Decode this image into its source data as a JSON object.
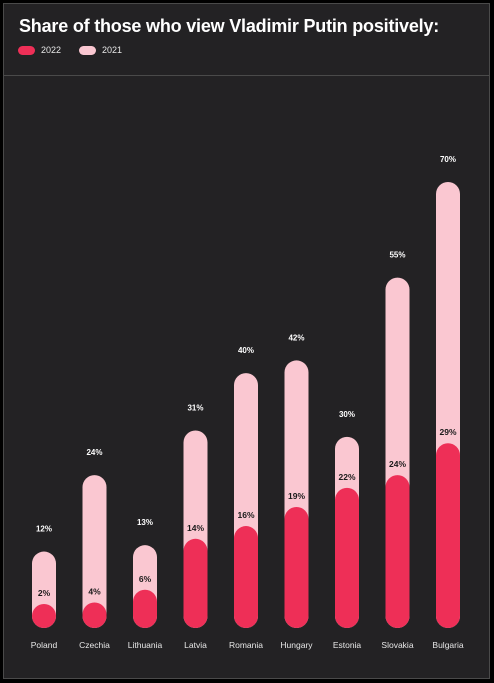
{
  "chart_data": {
    "type": "bar",
    "title": "Share of those who view Vladimir Putin positively:",
    "categories": [
      "Poland",
      "Czechia",
      "Lithuania",
      "Latvia",
      "Romania",
      "Hungary",
      "Estonia",
      "Slovakia",
      "Bulgaria"
    ],
    "series": [
      {
        "name": "2022",
        "color": "#ee2f57",
        "values": [
          2,
          4,
          6,
          14,
          16,
          19,
          22,
          24,
          29
        ],
        "labels": [
          "2%",
          "4%",
          "6%",
          "14%",
          "16%",
          "19%",
          "22%",
          "24%",
          "29%"
        ]
      },
      {
        "name": "2021",
        "color": "#fac7d1",
        "values": [
          12,
          24,
          13,
          31,
          40,
          42,
          30,
          55,
          70
        ],
        "labels": [
          "12%",
          "24%",
          "13%",
          "31%",
          "40%",
          "42%",
          "30%",
          "55%",
          "70%"
        ]
      }
    ],
    "ylim": [
      0,
      70
    ],
    "legend_position": "top-left",
    "grid": false
  },
  "colors": {
    "background": "#232224",
    "bar_2022": "#ee2f57",
    "bar_2021": "#fac7d1",
    "text": "#ffffff"
  }
}
